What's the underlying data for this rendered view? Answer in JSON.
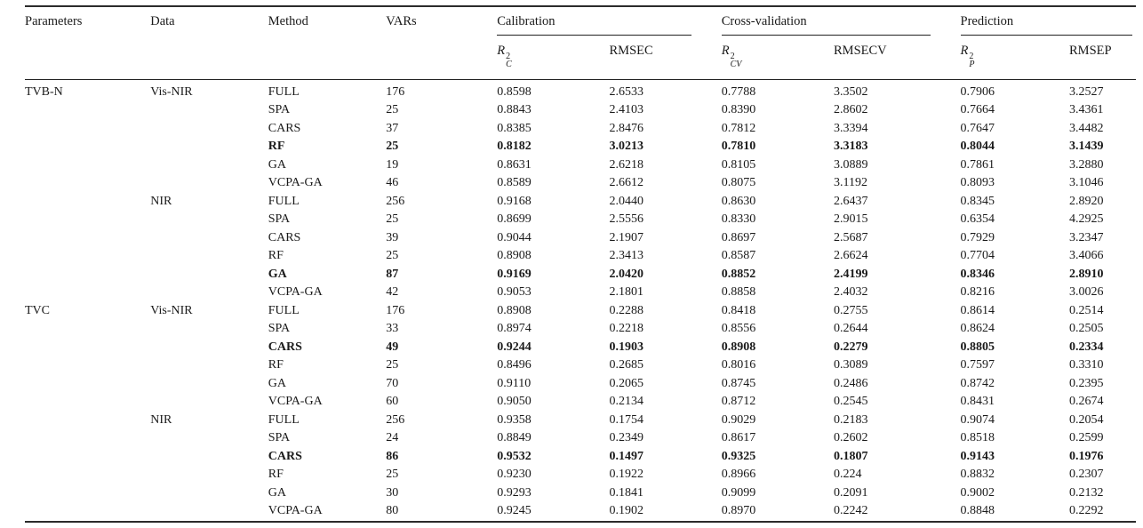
{
  "table": {
    "header": {
      "parameters": "Parameters",
      "data": "Data",
      "method": "Method",
      "vars": "VARs",
      "calibration": "Calibration",
      "crossvalidation": "Cross-validation",
      "prediction": "Prediction",
      "r2c": {
        "base": "R",
        "sup": "2",
        "sub": "C"
      },
      "rmsec": "RMSEC",
      "r2cv": {
        "base": "R",
        "sup": "2",
        "sub": "CV"
      },
      "rmsecv": "RMSECV",
      "r2p": {
        "base": "R",
        "sup": "2",
        "sub": "P"
      },
      "rmsep": "RMSEP"
    },
    "rows": [
      {
        "parameter": "TVB-N",
        "data": "Vis-NIR",
        "method": "FULL",
        "vars": "176",
        "r2c": "0.8598",
        "rmsec": "2.6533",
        "r2cv": "0.7788",
        "rmsecv": "3.3502",
        "r2p": "0.7906",
        "rmsep": "3.2527",
        "bold": false
      },
      {
        "parameter": "",
        "data": "",
        "method": "SPA",
        "vars": "25",
        "r2c": "0.8843",
        "rmsec": "2.4103",
        "r2cv": "0.8390",
        "rmsecv": "2.8602",
        "r2p": "0.7664",
        "rmsep": "3.4361",
        "bold": false
      },
      {
        "parameter": "",
        "data": "",
        "method": "CARS",
        "vars": "37",
        "r2c": "0.8385",
        "rmsec": "2.8476",
        "r2cv": "0.7812",
        "rmsecv": "3.3394",
        "r2p": "0.7647",
        "rmsep": "3.4482",
        "bold": false
      },
      {
        "parameter": "",
        "data": "",
        "method": "RF",
        "vars": "25",
        "r2c": "0.8182",
        "rmsec": "3.0213",
        "r2cv": "0.7810",
        "rmsecv": "3.3183",
        "r2p": "0.8044",
        "rmsep": "3.1439",
        "bold": true
      },
      {
        "parameter": "",
        "data": "",
        "method": "GA",
        "vars": "19",
        "r2c": "0.8631",
        "rmsec": "2.6218",
        "r2cv": "0.8105",
        "rmsecv": "3.0889",
        "r2p": "0.7861",
        "rmsep": "3.2880",
        "bold": false
      },
      {
        "parameter": "",
        "data": "",
        "method": "VCPA-GA",
        "vars": "46",
        "r2c": "0.8589",
        "rmsec": "2.6612",
        "r2cv": "0.8075",
        "rmsecv": "3.1192",
        "r2p": "0.8093",
        "rmsep": "3.1046",
        "bold": false
      },
      {
        "parameter": "",
        "data": "NIR",
        "method": "FULL",
        "vars": "256",
        "r2c": "0.9168",
        "rmsec": "2.0440",
        "r2cv": "0.8630",
        "rmsecv": "2.6437",
        "r2p": "0.8345",
        "rmsep": "2.8920",
        "bold": false
      },
      {
        "parameter": "",
        "data": "",
        "method": "SPA",
        "vars": "25",
        "r2c": "0.8699",
        "rmsec": "2.5556",
        "r2cv": "0.8330",
        "rmsecv": "2.9015",
        "r2p": "0.6354",
        "rmsep": "4.2925",
        "bold": false
      },
      {
        "parameter": "",
        "data": "",
        "method": "CARS",
        "vars": "39",
        "r2c": "0.9044",
        "rmsec": "2.1907",
        "r2cv": "0.8697",
        "rmsecv": "2.5687",
        "r2p": "0.7929",
        "rmsep": "3.2347",
        "bold": false
      },
      {
        "parameter": "",
        "data": "",
        "method": "RF",
        "vars": "25",
        "r2c": "0.8908",
        "rmsec": "2.3413",
        "r2cv": "0.8587",
        "rmsecv": "2.6624",
        "r2p": "0.7704",
        "rmsep": "3.4066",
        "bold": false
      },
      {
        "parameter": "",
        "data": "",
        "method": "GA",
        "vars": "87",
        "r2c": "0.9169",
        "rmsec": "2.0420",
        "r2cv": "0.8852",
        "rmsecv": "2.4199",
        "r2p": "0.8346",
        "rmsep": "2.8910",
        "bold": true
      },
      {
        "parameter": "",
        "data": "",
        "method": "VCPA-GA",
        "vars": "42",
        "r2c": "0.9053",
        "rmsec": "2.1801",
        "r2cv": "0.8858",
        "rmsecv": "2.4032",
        "r2p": "0.8216",
        "rmsep": "3.0026",
        "bold": false
      },
      {
        "parameter": "TVC",
        "data": "Vis-NIR",
        "method": "FULL",
        "vars": "176",
        "r2c": "0.8908",
        "rmsec": "0.2288",
        "r2cv": "0.8418",
        "rmsecv": "0.2755",
        "r2p": "0.8614",
        "rmsep": "0.2514",
        "bold": false
      },
      {
        "parameter": "",
        "data": "",
        "method": "SPA",
        "vars": "33",
        "r2c": "0.8974",
        "rmsec": "0.2218",
        "r2cv": "0.8556",
        "rmsecv": "0.2644",
        "r2p": "0.8624",
        "rmsep": "0.2505",
        "bold": false
      },
      {
        "parameter": "",
        "data": "",
        "method": "CARS",
        "vars": "49",
        "r2c": "0.9244",
        "rmsec": "0.1903",
        "r2cv": "0.8908",
        "rmsecv": "0.2279",
        "r2p": "0.8805",
        "rmsep": "0.2334",
        "bold": true
      },
      {
        "parameter": "",
        "data": "",
        "method": "RF",
        "vars": "25",
        "r2c": "0.8496",
        "rmsec": "0.2685",
        "r2cv": "0.8016",
        "rmsecv": "0.3089",
        "r2p": "0.7597",
        "rmsep": "0.3310",
        "bold": false
      },
      {
        "parameter": "",
        "data": "",
        "method": "GA",
        "vars": "70",
        "r2c": "0.9110",
        "rmsec": "0.2065",
        "r2cv": "0.8745",
        "rmsecv": "0.2486",
        "r2p": "0.8742",
        "rmsep": "0.2395",
        "bold": false
      },
      {
        "parameter": "",
        "data": "",
        "method": "VCPA-GA",
        "vars": "60",
        "r2c": "0.9050",
        "rmsec": "0.2134",
        "r2cv": "0.8712",
        "rmsecv": "0.2545",
        "r2p": "0.8431",
        "rmsep": "0.2674",
        "bold": false
      },
      {
        "parameter": "",
        "data": "NIR",
        "method": "FULL",
        "vars": "256",
        "r2c": "0.9358",
        "rmsec": "0.1754",
        "r2cv": "0.9029",
        "rmsecv": "0.2183",
        "r2p": "0.9074",
        "rmsep": "0.2054",
        "bold": false
      },
      {
        "parameter": "",
        "data": "",
        "method": "SPA",
        "vars": "24",
        "r2c": "0.8849",
        "rmsec": "0.2349",
        "r2cv": "0.8617",
        "rmsecv": "0.2602",
        "r2p": "0.8518",
        "rmsep": "0.2599",
        "bold": false
      },
      {
        "parameter": "",
        "data": "",
        "method": "CARS",
        "vars": "86",
        "r2c": "0.9532",
        "rmsec": "0.1497",
        "r2cv": "0.9325",
        "rmsecv": "0.1807",
        "r2p": "0.9143",
        "rmsep": "0.1976",
        "bold": true
      },
      {
        "parameter": "",
        "data": "",
        "method": "RF",
        "vars": "25",
        "r2c": "0.9230",
        "rmsec": "0.1922",
        "r2cv": "0.8966",
        "rmsecv": "0.224",
        "r2p": "0.8832",
        "rmsep": "0.2307",
        "bold": false
      },
      {
        "parameter": "",
        "data": "",
        "method": "GA",
        "vars": "30",
        "r2c": "0.9293",
        "rmsec": "0.1841",
        "r2cv": "0.9099",
        "rmsecv": "0.2091",
        "r2p": "0.9002",
        "rmsep": "0.2132",
        "bold": false
      },
      {
        "parameter": "",
        "data": "",
        "method": "VCPA-GA",
        "vars": "80",
        "r2c": "0.9245",
        "rmsec": "0.1902",
        "r2cv": "0.8970",
        "rmsecv": "0.2242",
        "r2p": "0.8848",
        "rmsep": "0.2292",
        "bold": false
      }
    ]
  }
}
